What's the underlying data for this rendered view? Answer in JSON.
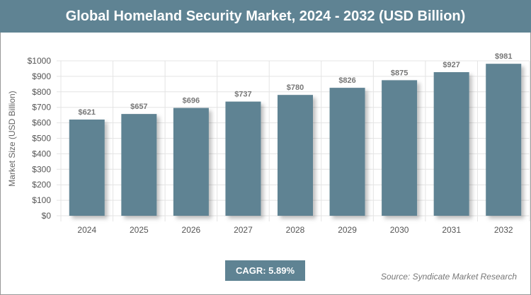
{
  "header": {
    "title": "Global Homeland Security Market, 2024 - 2032 (USD Billion)"
  },
  "chart_data": {
    "type": "bar",
    "categories": [
      "2024",
      "2025",
      "2026",
      "2027",
      "2028",
      "2029",
      "2030",
      "2031",
      "2032"
    ],
    "values": [
      621,
      657,
      696,
      737,
      780,
      826,
      875,
      927,
      981
    ],
    "data_labels": [
      "$621",
      "$657",
      "$696",
      "$737",
      "$780",
      "$826",
      "$875",
      "$927",
      "$981"
    ],
    "ylabel": "Market Size (USD Billion)",
    "xlabel": "",
    "ylim": [
      0,
      1000
    ],
    "yticks": [
      "$0",
      "$100",
      "$200",
      "$300",
      "$400",
      "$500",
      "$600",
      "$700",
      "$800",
      "$900",
      "$1000"
    ],
    "grid": true,
    "bar_color": "#5f8393"
  },
  "footer": {
    "cagr": "CAGR: 5.89%",
    "source": "Source: Syndicate Market Research"
  }
}
